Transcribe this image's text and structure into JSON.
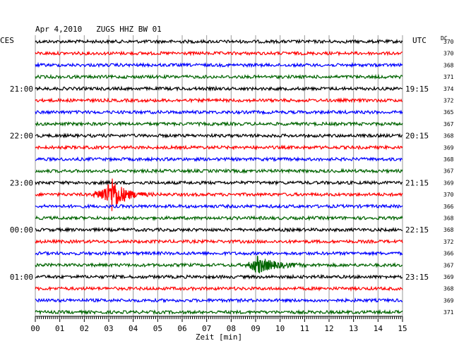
{
  "chart_data": {
    "type": "line",
    "title": "Apr 4,2010   ZUGS HHZ BW 01",
    "left_timezone": "CES",
    "right_timezone": "UTC",
    "dc_header": "DC",
    "xlabel": "Zeit [min]",
    "x_ticks": [
      "00",
      "01",
      "02",
      "03",
      "04",
      "05",
      "06",
      "07",
      "08",
      "09",
      "10",
      "11",
      "12",
      "13",
      "14",
      "15"
    ],
    "xlim": [
      0,
      15
    ],
    "grid": true,
    "trace_colors": [
      "#000000",
      "#ff0000",
      "#0000ff",
      "#006400"
    ],
    "left_time_labels": [
      {
        "trace": 4,
        "label": "21:00"
      },
      {
        "trace": 8,
        "label": "22:00"
      },
      {
        "trace": 12,
        "label": "23:00"
      },
      {
        "trace": 16,
        "label": "00:00"
      },
      {
        "trace": 20,
        "label": "01:00"
      }
    ],
    "right_time_labels": [
      {
        "trace": 4,
        "label": "19:15"
      },
      {
        "trace": 8,
        "label": "20:15"
      },
      {
        "trace": 12,
        "label": "21:15"
      },
      {
        "trace": 16,
        "label": "22:15"
      },
      {
        "trace": 20,
        "label": "23:15"
      }
    ],
    "dc_values": [
      370,
      370,
      368,
      371,
      374,
      372,
      365,
      367,
      368,
      369,
      368,
      367,
      369,
      370,
      366,
      368,
      368,
      372,
      366,
      367,
      369,
      368,
      369,
      371
    ],
    "events": [
      {
        "trace": 13,
        "start_min": 2.2,
        "peak_min": 3.1,
        "end_min": 4.9,
        "amplitude": "large"
      },
      {
        "trace": 19,
        "start_min": 8.5,
        "peak_min": 9.0,
        "end_min": 11.6,
        "amplitude": "medium"
      }
    ]
  }
}
